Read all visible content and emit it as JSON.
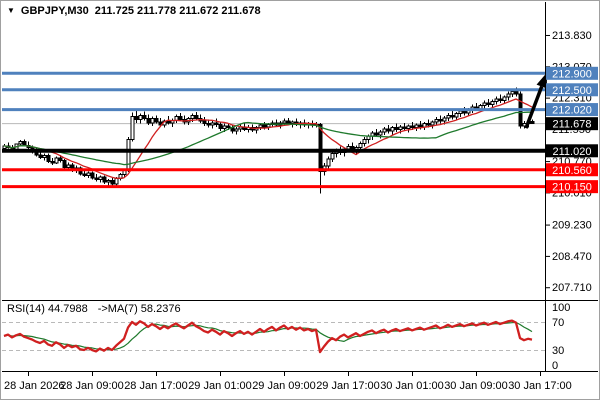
{
  "header": {
    "dropdown_icon": "▼",
    "symbol": "GBPJPY,M30",
    "quote": "211.725 211.778 211.672 211.678"
  },
  "rsi_header": {
    "label": "RSI(14) 44.7988",
    "ma_label": "->MA(7) 58.2376"
  },
  "colors": {
    "resistance_blue": "#4f81bd",
    "support_red": "#ff0000",
    "pivot_black": "#000000",
    "current_price_gray": "#b8b8b8",
    "ma_fast_red": "#d02020",
    "ma_slow_green": "#1f7a2d",
    "rsi_red": "#d02020",
    "rsi_ma_green": "#1f7a2d",
    "frame_gray": "#a0a0a0"
  },
  "chart_data": {
    "type": "candlestick",
    "symbol": "GBPJPY",
    "timeframe": "M30",
    "last_quote": {
      "open": 211.725,
      "high": 211.778,
      "low": 211.672,
      "close": 211.678
    },
    "price_axis": {
      "ylim": [
        207.4,
        214.63
      ],
      "tick_labels": [
        "213.830",
        "213.070",
        "212.310",
        "211.550",
        "210.770",
        "210.010",
        "209.230",
        "208.470",
        "207.710"
      ]
    },
    "time_axis": {
      "labels": [
        "28 Jan 2026",
        "28 Jan 09:00",
        "28 Jan 17:00",
        "29 Jan 01:00",
        "29 Jan 09:00",
        "29 Jan 17:00",
        "30 Jan 01:00",
        "30 Jan 09:00",
        "30 Jan 17:00"
      ]
    },
    "horizontal_lines": [
      {
        "price": 212.9,
        "role": "resistance",
        "color": "#4f81bd",
        "width": 3
      },
      {
        "price": 212.5,
        "role": "resistance",
        "color": "#4f81bd",
        "width": 3
      },
      {
        "price": 212.02,
        "role": "resistance",
        "color": "#4f81bd",
        "width": 3
      },
      {
        "price": 211.02,
        "role": "pivot",
        "color": "#000000",
        "width": 4
      },
      {
        "price": 210.56,
        "role": "support",
        "color": "#ff0000",
        "width": 3
      },
      {
        "price": 210.15,
        "role": "support",
        "color": "#ff0000",
        "width": 3
      }
    ],
    "current_price_line": {
      "price": 211.678,
      "line_color": "#b8b8b8",
      "badge_color": "#000000"
    },
    "arrow_annotation": {
      "direction": "up",
      "from_candle": 130,
      "from_price": 211.57,
      "to_price": 212.92,
      "color": "#000000"
    },
    "ma_fast": {
      "period": 10,
      "color": "#d02020"
    },
    "ma_slow": {
      "period": 30,
      "color": "#1f7a2d"
    },
    "candles": [
      [
        211.08,
        211.18,
        211.02,
        211.14
      ],
      [
        211.14,
        211.22,
        211.08,
        211.1
      ],
      [
        211.1,
        211.16,
        211.0,
        211.04
      ],
      [
        211.04,
        211.2,
        211.02,
        211.18
      ],
      [
        211.18,
        211.28,
        211.12,
        211.25
      ],
      [
        211.25,
        211.3,
        211.12,
        211.15
      ],
      [
        211.15,
        211.24,
        211.06,
        211.1
      ],
      [
        211.1,
        211.15,
        210.96,
        211.0
      ],
      [
        211.0,
        211.1,
        210.88,
        210.92
      ],
      [
        210.92,
        211.02,
        210.82,
        210.86
      ],
      [
        210.86,
        210.95,
        210.78,
        210.9
      ],
      [
        210.9,
        210.96,
        210.72,
        210.76
      ],
      [
        210.76,
        210.84,
        210.68,
        210.72
      ],
      [
        210.72,
        210.88,
        210.7,
        210.85
      ],
      [
        210.85,
        210.92,
        210.74,
        210.78
      ],
      [
        210.78,
        210.82,
        210.58,
        210.62
      ],
      [
        210.62,
        210.74,
        210.55,
        210.68
      ],
      [
        210.68,
        210.72,
        210.5,
        210.54
      ],
      [
        210.54,
        210.66,
        210.48,
        210.6
      ],
      [
        210.6,
        210.64,
        210.42,
        210.46
      ],
      [
        210.46,
        210.56,
        210.38,
        210.42
      ],
      [
        210.42,
        210.52,
        210.36,
        210.48
      ],
      [
        210.48,
        210.52,
        210.32,
        210.36
      ],
      [
        210.36,
        210.46,
        210.28,
        210.32
      ],
      [
        210.32,
        210.42,
        210.25,
        210.38
      ],
      [
        210.38,
        210.42,
        210.22,
        210.26
      ],
      [
        210.26,
        210.34,
        210.12,
        210.3
      ],
      [
        210.3,
        210.36,
        210.18,
        210.22
      ],
      [
        210.22,
        210.38,
        210.16,
        210.35
      ],
      [
        210.35,
        210.48,
        210.3,
        210.44
      ],
      [
        210.44,
        210.58,
        210.38,
        210.54
      ],
      [
        210.54,
        211.35,
        210.5,
        211.3
      ],
      [
        211.3,
        211.95,
        211.25,
        211.85
      ],
      [
        211.85,
        211.98,
        211.7,
        211.78
      ],
      [
        211.78,
        211.92,
        211.68,
        211.88
      ],
      [
        211.88,
        211.97,
        211.76,
        211.8
      ],
      [
        211.8,
        211.9,
        211.64,
        211.7
      ],
      [
        211.7,
        211.85,
        211.62,
        211.8
      ],
      [
        211.8,
        211.88,
        211.68,
        211.72
      ],
      [
        211.72,
        211.82,
        211.6,
        211.65
      ],
      [
        211.65,
        211.78,
        211.58,
        211.74
      ],
      [
        211.74,
        211.86,
        211.66,
        211.7
      ],
      [
        211.7,
        211.8,
        211.6,
        211.76
      ],
      [
        211.76,
        211.9,
        211.7,
        211.85
      ],
      [
        211.85,
        211.94,
        211.74,
        211.78
      ],
      [
        211.78,
        211.88,
        211.66,
        211.72
      ],
      [
        211.72,
        211.84,
        211.64,
        211.8
      ],
      [
        211.8,
        211.92,
        211.72,
        211.88
      ],
      [
        211.88,
        211.96,
        211.76,
        211.8
      ],
      [
        211.8,
        211.9,
        211.7,
        211.74
      ],
      [
        211.74,
        211.84,
        211.62,
        211.68
      ],
      [
        211.68,
        211.78,
        211.58,
        211.64
      ],
      [
        211.64,
        211.76,
        211.56,
        211.7
      ],
      [
        211.7,
        211.8,
        211.6,
        211.66
      ],
      [
        211.66,
        211.72,
        211.5,
        211.56
      ],
      [
        211.56,
        211.68,
        211.48,
        211.62
      ],
      [
        211.62,
        211.7,
        211.52,
        211.58
      ],
      [
        211.58,
        211.64,
        211.44,
        211.5
      ],
      [
        211.5,
        211.6,
        211.42,
        211.55
      ],
      [
        211.55,
        211.66,
        211.48,
        211.6
      ],
      [
        211.6,
        211.68,
        211.5,
        211.54
      ],
      [
        211.54,
        211.64,
        211.46,
        211.58
      ],
      [
        211.58,
        211.66,
        211.48,
        211.52
      ],
      [
        211.52,
        211.62,
        211.44,
        211.58
      ],
      [
        211.58,
        211.7,
        211.52,
        211.65
      ],
      [
        211.65,
        211.72,
        211.54,
        211.6
      ],
      [
        211.6,
        211.7,
        211.52,
        211.66
      ],
      [
        211.66,
        211.76,
        211.58,
        211.7
      ],
      [
        211.7,
        211.78,
        211.6,
        211.64
      ],
      [
        211.64,
        211.74,
        211.56,
        211.7
      ],
      [
        211.7,
        211.8,
        211.62,
        211.74
      ],
      [
        211.74,
        211.82,
        211.64,
        211.68
      ],
      [
        211.68,
        211.76,
        211.58,
        211.72
      ],
      [
        211.72,
        211.8,
        211.62,
        211.66
      ],
      [
        211.66,
        211.74,
        211.56,
        211.7
      ],
      [
        211.7,
        211.78,
        211.6,
        211.64
      ],
      [
        211.64,
        211.72,
        211.56,
        211.68
      ],
      [
        211.68,
        211.76,
        211.58,
        211.64
      ],
      [
        211.64,
        211.72,
        211.58,
        211.66
      ],
      [
        211.66,
        211.7,
        209.98,
        210.52
      ],
      [
        210.52,
        210.72,
        210.42,
        210.65
      ],
      [
        210.65,
        210.88,
        210.58,
        210.82
      ],
      [
        210.82,
        211.0,
        210.75,
        210.95
      ],
      [
        210.95,
        211.08,
        210.86,
        211.02
      ],
      [
        211.02,
        211.12,
        210.92,
        210.98
      ],
      [
        210.98,
        211.1,
        210.88,
        211.06
      ],
      [
        211.06,
        211.18,
        210.98,
        211.12
      ],
      [
        211.12,
        211.22,
        211.0,
        211.05
      ],
      [
        211.05,
        211.15,
        210.92,
        211.1
      ],
      [
        211.1,
        211.25,
        211.02,
        211.2
      ],
      [
        211.2,
        211.35,
        211.12,
        211.3
      ],
      [
        211.3,
        211.42,
        211.2,
        211.38
      ],
      [
        211.38,
        211.5,
        211.28,
        211.45
      ],
      [
        211.45,
        211.55,
        211.35,
        211.4
      ],
      [
        211.4,
        211.52,
        211.32,
        211.48
      ],
      [
        211.48,
        211.6,
        211.4,
        211.55
      ],
      [
        211.55,
        211.64,
        211.44,
        211.5
      ],
      [
        211.5,
        211.62,
        211.42,
        211.58
      ],
      [
        211.58,
        211.68,
        211.48,
        211.54
      ],
      [
        211.54,
        211.64,
        211.44,
        211.6
      ],
      [
        211.6,
        211.7,
        211.5,
        211.56
      ],
      [
        211.56,
        211.66,
        211.46,
        211.62
      ],
      [
        211.62,
        211.72,
        211.52,
        211.58
      ],
      [
        211.58,
        211.68,
        211.5,
        211.64
      ],
      [
        211.64,
        211.74,
        211.54,
        211.6
      ],
      [
        211.6,
        211.72,
        211.52,
        211.68
      ],
      [
        211.68,
        211.78,
        211.58,
        211.64
      ],
      [
        211.64,
        211.76,
        211.56,
        211.72
      ],
      [
        211.72,
        211.84,
        211.64,
        211.78
      ],
      [
        211.78,
        211.88,
        211.68,
        211.74
      ],
      [
        211.74,
        211.86,
        211.66,
        211.82
      ],
      [
        211.82,
        211.94,
        211.74,
        211.88
      ],
      [
        211.88,
        211.98,
        211.78,
        211.84
      ],
      [
        211.84,
        211.96,
        211.76,
        211.92
      ],
      [
        211.92,
        212.04,
        211.84,
        211.98
      ],
      [
        211.98,
        212.08,
        211.88,
        211.94
      ],
      [
        211.94,
        212.06,
        211.86,
        212.02
      ],
      [
        212.02,
        212.14,
        211.94,
        212.08
      ],
      [
        212.08,
        212.18,
        211.98,
        212.04
      ],
      [
        212.04,
        212.16,
        211.96,
        212.12
      ],
      [
        212.12,
        212.24,
        212.04,
        212.18
      ],
      [
        212.18,
        212.28,
        212.08,
        212.14
      ],
      [
        212.14,
        212.26,
        212.06,
        212.22
      ],
      [
        212.22,
        212.34,
        212.14,
        212.28
      ],
      [
        212.28,
        212.38,
        212.18,
        212.24
      ],
      [
        212.24,
        212.36,
        212.16,
        212.32
      ],
      [
        212.32,
        212.46,
        212.24,
        212.4
      ],
      [
        212.4,
        212.52,
        212.32,
        212.46
      ],
      [
        212.46,
        212.55,
        212.34,
        212.4
      ],
      [
        212.4,
        212.46,
        211.56,
        211.62
      ],
      [
        211.62,
        211.74,
        211.56,
        211.68
      ],
      [
        211.68,
        211.76,
        211.58,
        211.72
      ],
      [
        211.725,
        211.778,
        211.672,
        211.678
      ]
    ],
    "rsi": {
      "period": 14,
      "final_value": 44.7988,
      "ma_period": 7,
      "final_ma": 58.2376,
      "levels": [
        70,
        30
      ],
      "scale_labels": [
        "100",
        "70",
        "30",
        "0"
      ],
      "values": [
        50,
        52,
        48,
        51,
        53,
        49,
        47,
        45,
        42,
        40,
        43,
        38,
        36,
        41,
        38,
        33,
        37,
        34,
        36,
        31,
        30,
        33,
        30,
        28,
        32,
        29,
        33,
        30,
        36,
        41,
        46,
        62,
        70,
        66,
        71,
        68,
        63,
        67,
        64,
        60,
        64,
        61,
        65,
        68,
        64,
        61,
        65,
        69,
        64,
        61,
        57,
        55,
        59,
        56,
        52,
        57,
        54,
        50,
        54,
        57,
        53,
        56,
        52,
        56,
        60,
        56,
        60,
        63,
        58,
        62,
        65,
        60,
        63,
        59,
        62,
        58,
        60,
        57,
        59,
        27,
        35,
        42,
        47,
        44,
        49,
        52,
        48,
        51,
        54,
        50,
        53,
        56,
        58,
        54,
        57,
        59,
        55,
        58,
        60,
        57,
        59,
        61,
        58,
        60,
        62,
        59,
        61,
        63,
        65,
        61,
        63,
        66,
        63,
        65,
        67,
        64,
        66,
        68,
        65,
        67,
        69,
        66,
        68,
        70,
        67,
        69,
        71,
        72,
        69,
        47,
        44,
        46,
        44.8
      ]
    }
  }
}
